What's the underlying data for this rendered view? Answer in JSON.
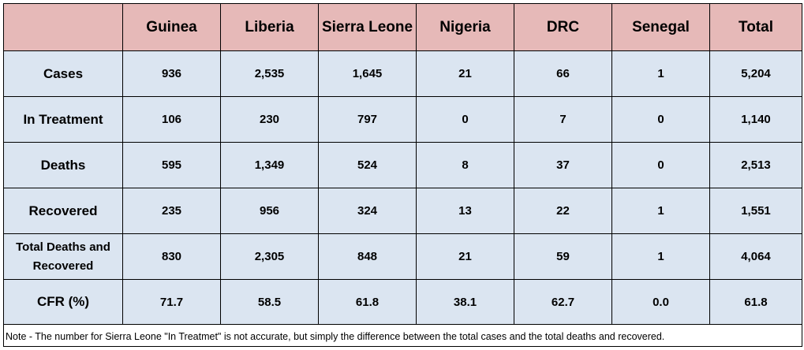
{
  "table": {
    "columns": [
      "",
      "Guinea",
      "Liberia",
      "Sierra Leone",
      "Nigeria",
      "DRC",
      "Senegal",
      "Total"
    ],
    "rows": [
      {
        "label": "Cases",
        "values": [
          "936",
          "2,535",
          "1,645",
          "21",
          "66",
          "1",
          "5,204"
        ]
      },
      {
        "label": "In Treatment",
        "values": [
          "106",
          "230",
          "797",
          "0",
          "7",
          "0",
          "1,140"
        ]
      },
      {
        "label": "Deaths",
        "values": [
          "595",
          "1,349",
          "524",
          "8",
          "37",
          "0",
          "2,513"
        ]
      },
      {
        "label": "Recovered",
        "values": [
          "235",
          "956",
          "324",
          "13",
          "22",
          "1",
          "1,551"
        ]
      },
      {
        "label": "Total Deaths and Recovered",
        "values": [
          "830",
          "2,305",
          "848",
          "21",
          "59",
          "1",
          "4,064"
        ]
      },
      {
        "label": "CFR (%)",
        "values": [
          "71.7",
          "58.5",
          "61.8",
          "38.1",
          "62.7",
          "0.0",
          "61.8"
        ]
      }
    ],
    "note": "Note - The number for Sierra Leone \"In Treatmet\" is not accurate, but simply the difference between the total cases and the total deaths and recovered."
  }
}
